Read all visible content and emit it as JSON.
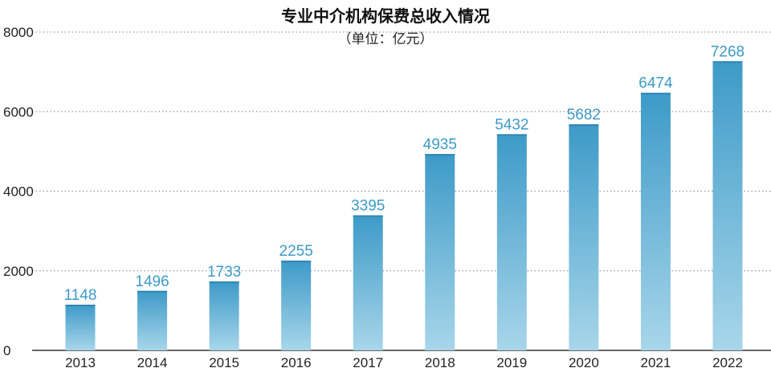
{
  "chart_data": {
    "type": "bar",
    "title": "专业中介机构保费总收入情况",
    "subtitle": "（单位：亿元）",
    "categories": [
      "2013",
      "2014",
      "2015",
      "2016",
      "2017",
      "2018",
      "2019",
      "2020",
      "2021",
      "2022"
    ],
    "values": [
      1148,
      1496,
      1733,
      2255,
      3395,
      4935,
      5432,
      5682,
      6474,
      7268
    ],
    "data_labels": [
      "1148",
      "1496",
      "1733",
      "2255",
      "3395",
      "4935",
      "5432",
      "5682",
      "6474",
      "7268"
    ],
    "ylim": [
      0,
      8000
    ],
    "yticks": [
      0,
      2000,
      4000,
      6000,
      8000
    ],
    "ytick_labels": [
      "0",
      "2000",
      "4000",
      "6000",
      "8000"
    ],
    "grid": "dotted horizontal",
    "colors": {
      "bar_top": "#3d9ac8",
      "bar_bottom": "#a8d6ea",
      "label": "#3d9ac8",
      "grid": "#9a9a9a",
      "axis": "#333333"
    }
  }
}
